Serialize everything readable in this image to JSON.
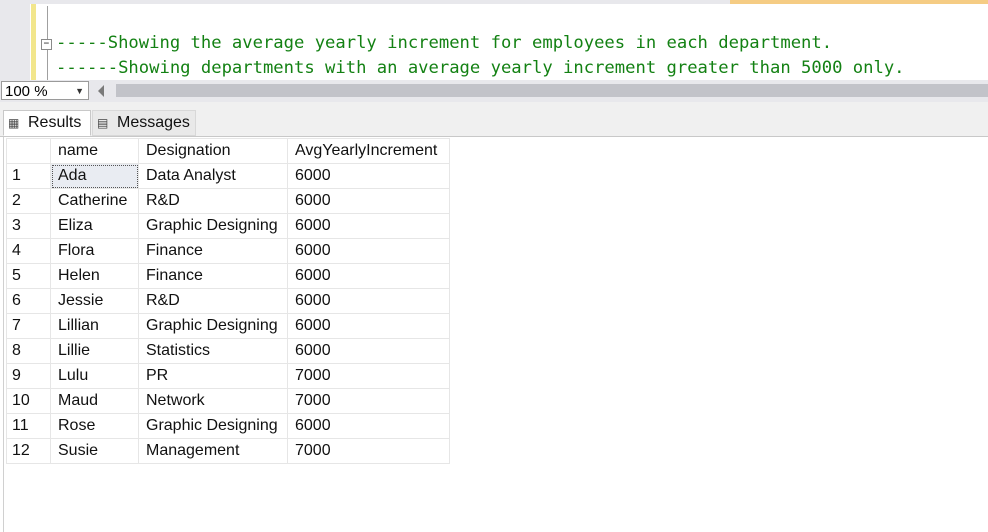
{
  "editor": {
    "fold_symbol": "−",
    "lines": [
      "-----Showing the average yearly increment for employees in each department.",
      "------Showing departments with an average yearly increment greater than 5000 only."
    ]
  },
  "zoom": {
    "value": "100 %"
  },
  "tabs": {
    "results": {
      "label": "Results",
      "icon": "grid-icon"
    },
    "messages": {
      "label": "Messages",
      "icon": "messages-icon"
    }
  },
  "grid": {
    "columns": [
      "name",
      "Designation",
      "AvgYearlyIncrement"
    ],
    "rows": [
      {
        "n": "1",
        "name": "Ada",
        "designation": "Data Analyst",
        "avg": "6000"
      },
      {
        "n": "2",
        "name": "Catherine",
        "designation": "R&D",
        "avg": "6000"
      },
      {
        "n": "3",
        "name": "Eliza",
        "designation": "Graphic Designing",
        "avg": "6000"
      },
      {
        "n": "4",
        "name": "Flora",
        "designation": "Finance",
        "avg": "6000"
      },
      {
        "n": "5",
        "name": "Helen",
        "designation": "Finance",
        "avg": "6000"
      },
      {
        "n": "6",
        "name": "Jessie",
        "designation": "R&D",
        "avg": "6000"
      },
      {
        "n": "7",
        "name": "Lillian",
        "designation": "Graphic Designing",
        "avg": "6000"
      },
      {
        "n": "8",
        "name": "Lillie",
        "designation": "Statistics",
        "avg": "6000"
      },
      {
        "n": "9",
        "name": "Lulu",
        "designation": "PR",
        "avg": "7000"
      },
      {
        "n": "10",
        "name": "Maud",
        "designation": "Network",
        "avg": "7000"
      },
      {
        "n": "11",
        "name": "Rose",
        "designation": "Graphic Designing",
        "avg": "6000"
      },
      {
        "n": "12",
        "name": "Susie",
        "designation": "Management",
        "avg": "7000"
      }
    ]
  }
}
